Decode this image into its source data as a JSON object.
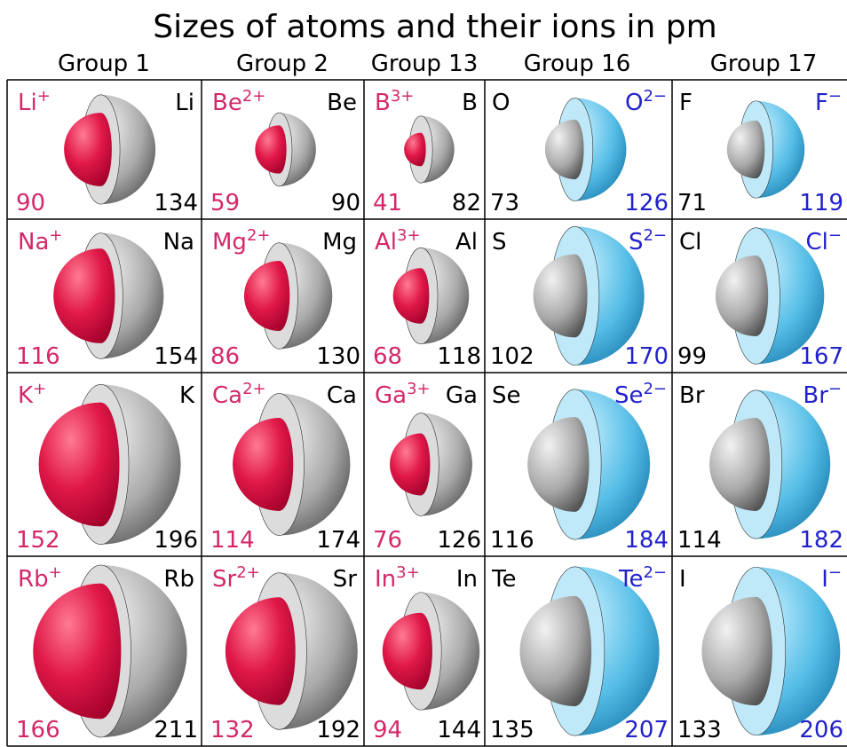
{
  "title": "Sizes of atoms and their ions in pm",
  "groups": [
    {
      "name": "Group 1",
      "cells": [
        {
          "ion": "Li",
          "charge": "+",
          "atom": "Li",
          "ion_radius": 90,
          "atom_radius": 134
        },
        {
          "ion": "Na",
          "charge": "+",
          "atom": "Na",
          "ion_radius": 116,
          "atom_radius": 154
        },
        {
          "ion": "K",
          "charge": "+",
          "atom": "K",
          "ion_radius": 152,
          "atom_radius": 196
        },
        {
          "ion": "Rb",
          "charge": "+",
          "atom": "Rb",
          "ion_radius": 166,
          "atom_radius": 211
        }
      ]
    },
    {
      "name": "Group 2",
      "cells": [
        {
          "ion": "Be",
          "charge": "2+",
          "atom": "Be",
          "ion_radius": 59,
          "atom_radius": 90
        },
        {
          "ion": "Mg",
          "charge": "2+",
          "atom": "Mg",
          "ion_radius": 86,
          "atom_radius": 130
        },
        {
          "ion": "Ca",
          "charge": "2+",
          "atom": "Ca",
          "ion_radius": 114,
          "atom_radius": 174
        },
        {
          "ion": "Sr",
          "charge": "2+",
          "atom": "Sr",
          "ion_radius": 132,
          "atom_radius": 192
        }
      ]
    },
    {
      "name": "Group 13",
      "cells": [
        {
          "ion": "B",
          "charge": "3+",
          "atom": "B",
          "ion_radius": 41,
          "atom_radius": 82
        },
        {
          "ion": "Al",
          "charge": "3+",
          "atom": "Al",
          "ion_radius": 68,
          "atom_radius": 118
        },
        {
          "ion": "Ga",
          "charge": "3+",
          "atom": "Ga",
          "ion_radius": 76,
          "atom_radius": 126
        },
        {
          "ion": "In",
          "charge": "3+",
          "atom": "In",
          "ion_radius": 94,
          "atom_radius": 144
        }
      ]
    },
    {
      "name": "Group 16",
      "cells": [
        {
          "ion": "O",
          "charge": "2−",
          "atom": "O",
          "ion_radius": 126,
          "atom_radius": 73
        },
        {
          "ion": "S",
          "charge": "2−",
          "atom": "S",
          "ion_radius": 170,
          "atom_radius": 102
        },
        {
          "ion": "Se",
          "charge": "2−",
          "atom": "Se",
          "ion_radius": 184,
          "atom_radius": 116
        },
        {
          "ion": "Te",
          "charge": "2−",
          "atom": "Te",
          "ion_radius": 207,
          "atom_radius": 135
        }
      ]
    },
    {
      "name": "Group 17",
      "cells": [
        {
          "ion": "F",
          "charge": "−",
          "atom": "F",
          "ion_radius": 119,
          "atom_radius": 71
        },
        {
          "ion": "Cl",
          "charge": "−",
          "atom": "Cl",
          "ion_radius": 167,
          "atom_radius": 99
        },
        {
          "ion": "Br",
          "charge": "−",
          "atom": "Br",
          "ion_radius": 182,
          "atom_radius": 114
        },
        {
          "ion": "I",
          "charge": "−",
          "atom": "I",
          "ion_radius": 206,
          "atom_radius": 133
        }
      ]
    }
  ]
}
